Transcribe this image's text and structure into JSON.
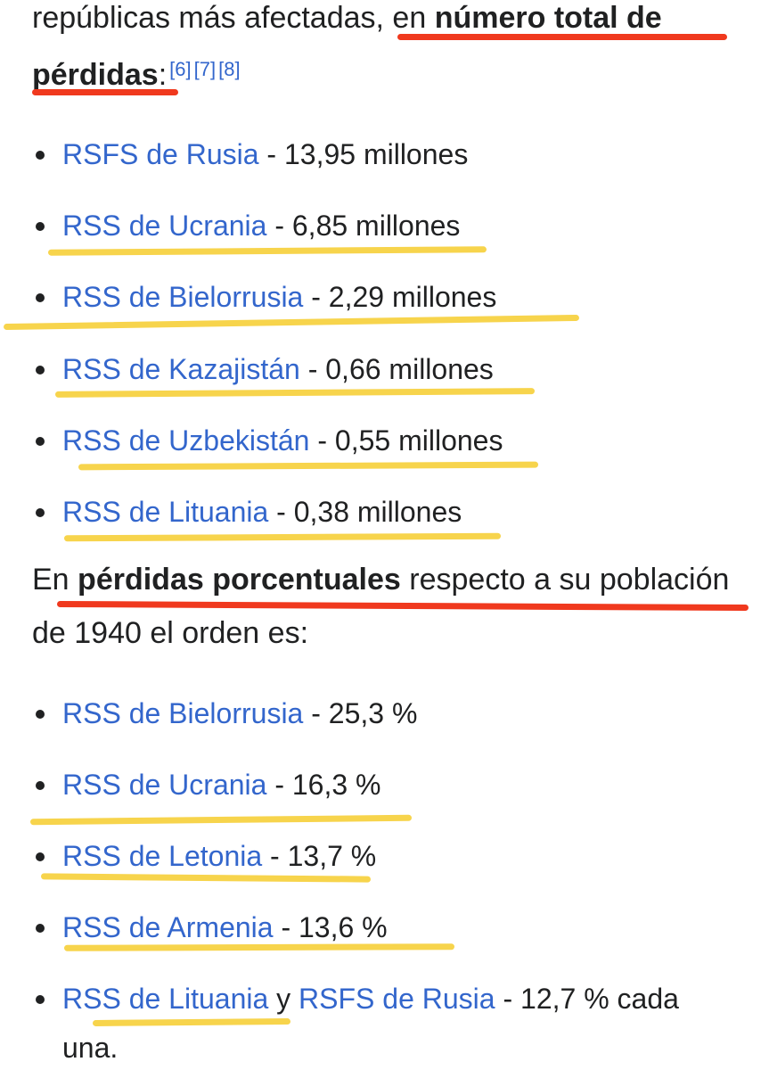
{
  "intro": {
    "prefix": "repúblicas más afectadas, en ",
    "bold": "número total de",
    "bold2": "pérdidas",
    "colon": ":",
    "refs": [
      "[6]",
      "[7]",
      "[8]"
    ]
  },
  "total_losses": [
    {
      "link": "RSFS de Rusia",
      "value": " - 13,95 millones"
    },
    {
      "link": "RSS de Ucrania",
      "value": " - 6,85 millones"
    },
    {
      "link": "RSS de Bielorrusia",
      "value": " - 2,29 millones"
    },
    {
      "link": "RSS de Kazajistán",
      "value": " - 0,66 millones"
    },
    {
      "link": "RSS de Uzbekistán",
      "value": " - 0,55 millones"
    },
    {
      "link": "RSS de Lituania",
      "value": " - 0,38 millones"
    }
  ],
  "percent_intro": {
    "prefix": "En ",
    "bold": "pérdidas porcentuales",
    "suffix": " respecto a su población",
    "line2": "de 1940 el orden es:"
  },
  "percent_losses": [
    {
      "link": "RSS de Bielorrusia",
      "value": " - 25,3 %"
    },
    {
      "link": "RSS de Ucrania",
      "value": " - 16,3 %"
    },
    {
      "link": "RSS de Letonia",
      "value": " - 13,7 %"
    },
    {
      "link": "RSS de Armenia",
      "value": " - 13,6 %"
    }
  ],
  "last_item": {
    "link1": "RSS de Lituania",
    "mid": " y ",
    "link2": "RSFS de Rusia",
    "value": " - 12,7 % cada",
    "line2": "una."
  },
  "colors": {
    "link": "#3366cc",
    "text": "#202122",
    "red_mark": "#f0391e",
    "yellow_mark": "#f7d44c"
  }
}
